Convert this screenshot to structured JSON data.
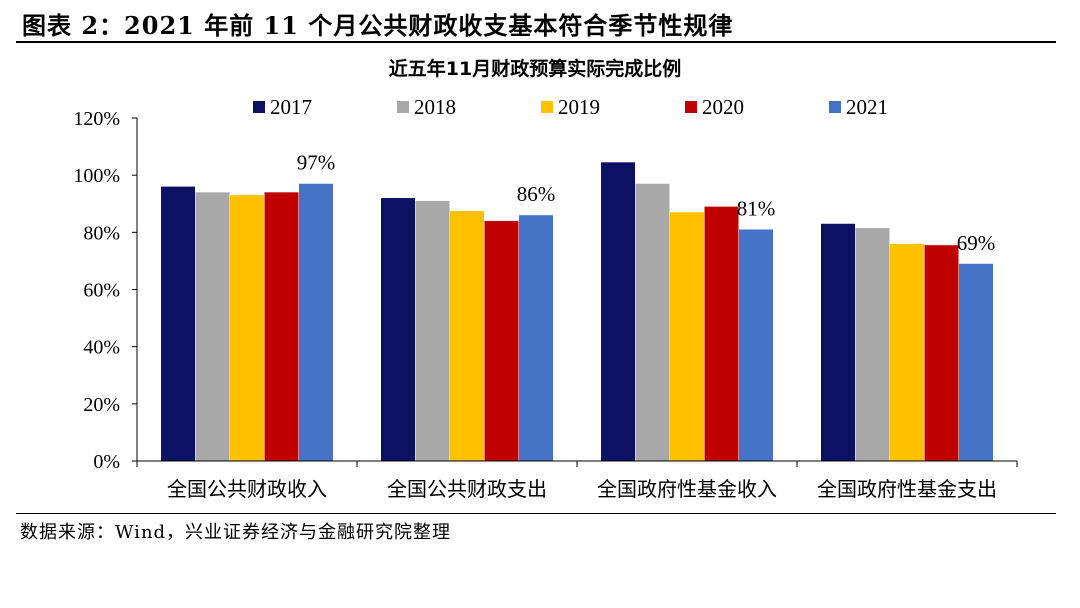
{
  "figure_title": "图表 2：2021 年前 11 个月公共财政收支基本符合季节性规律",
  "source": "数据来源：Wind，兴业证券经济与金融研究院整理",
  "colors": {
    "2017": "#0d1163",
    "2018": "#a8a8a8",
    "2019": "#ffc000",
    "2020": "#c00000",
    "2021": "#4472c4"
  },
  "chart_data": {
    "type": "bar",
    "title": "近五年11月财政预算实际完成比例",
    "categories": [
      "全国公共财政收入",
      "全国公共财政支出",
      "全国政府性基金收入",
      "全国政府性基金支出"
    ],
    "series": [
      {
        "name": "2017",
        "values": [
          96,
          92,
          104.5,
          83
        ]
      },
      {
        "name": "2018",
        "values": [
          94,
          91,
          97,
          81.5
        ]
      },
      {
        "name": "2019",
        "values": [
          93,
          87.5,
          87,
          76
        ]
      },
      {
        "name": "2020",
        "values": [
          94,
          84,
          89,
          75.5
        ]
      },
      {
        "name": "2021",
        "values": [
          97,
          86,
          81,
          69
        ]
      }
    ],
    "annotations": [
      "97%",
      "86%",
      "81%",
      "69%"
    ],
    "y_ticks": [
      "0%",
      "20%",
      "40%",
      "60%",
      "80%",
      "100%",
      "120%"
    ],
    "ylim": [
      0,
      120
    ],
    "legend": "top",
    "xlabel": "",
    "ylabel": ""
  }
}
